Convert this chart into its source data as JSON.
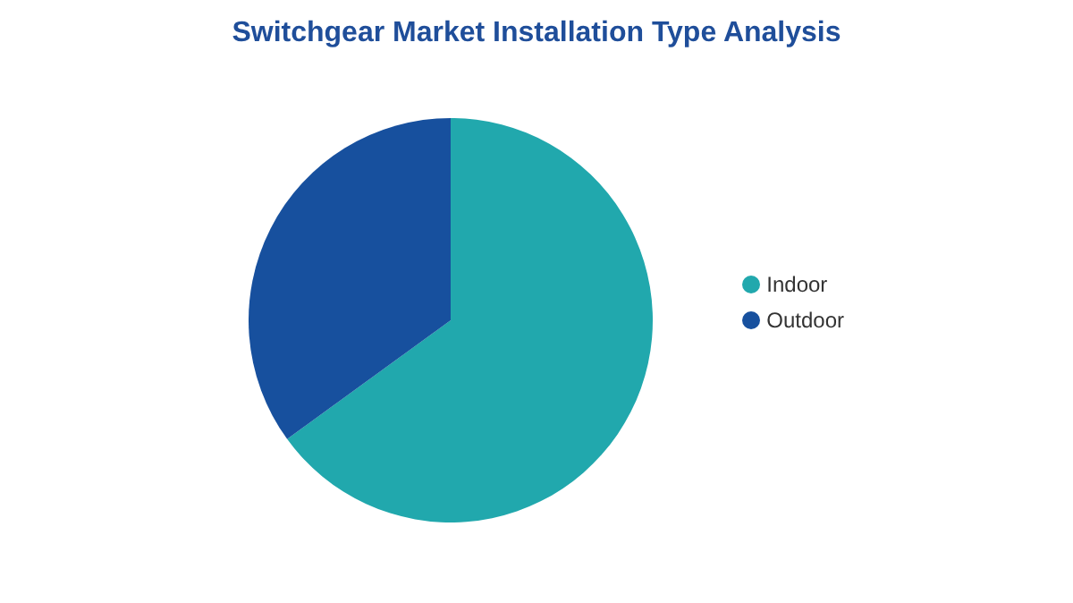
{
  "chart_data": {
    "type": "pie",
    "title": "Switchgear Market Installation Type Analysis",
    "categories": [
      "Indoor",
      "Outdoor"
    ],
    "values": [
      65,
      35
    ],
    "colors": [
      "#21a8ad",
      "#17509e"
    ],
    "legend": "right"
  }
}
